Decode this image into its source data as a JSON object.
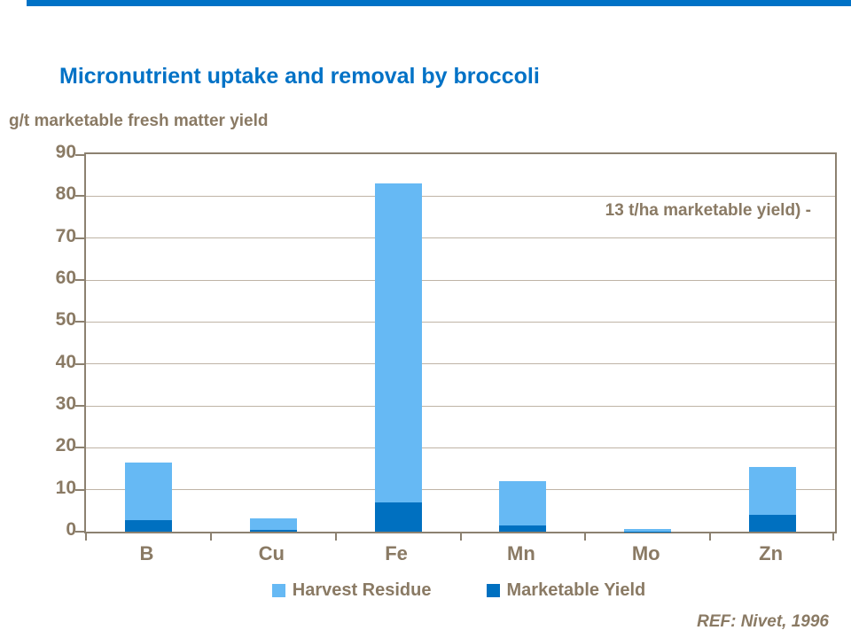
{
  "page": {
    "reference": "REF: Nivet, 1996"
  },
  "colors": {
    "accent_blue": "#0072C6",
    "title_blue": "#0072C6",
    "label_brown": "#8A7A64",
    "axis_line": "#8C8170",
    "gridline": "#BFB4A6",
    "harvest_residue_blue": "#66B9F4",
    "marketable_yield_blue": "#0070C0"
  },
  "chart_data": {
    "type": "bar",
    "stacked": true,
    "title": "Micronutrient uptake and removal by broccoli",
    "ylabel": "g/t marketable fresh matter yield",
    "xlabel": "",
    "ylim": [
      0,
      90
    ],
    "ytick_step": 10,
    "grid": true,
    "legend_position": "bottom",
    "categories": [
      "B",
      "Cu",
      "Fe",
      "Mn",
      "Mo",
      "Zn"
    ],
    "series": [
      {
        "name": "Marketable Yield",
        "color": "#0070C0",
        "values": [
          2.7,
          0.5,
          7,
          1.4,
          0.1,
          4
        ]
      },
      {
        "name": "Harvest Residue",
        "color": "#66B9F4",
        "values": [
          13.8,
          2.6,
          76,
          10.6,
          0.5,
          11.5
        ]
      }
    ],
    "stack_totals": [
      16.5,
      3.1,
      83,
      12,
      0.6,
      15.5
    ],
    "annotation": "13 t/ha marketable yield) -"
  },
  "legend": {
    "items": [
      {
        "label": "Harvest Residue",
        "color": "#66B9F4"
      },
      {
        "label": "Marketable Yield",
        "color": "#0070C0"
      }
    ]
  }
}
